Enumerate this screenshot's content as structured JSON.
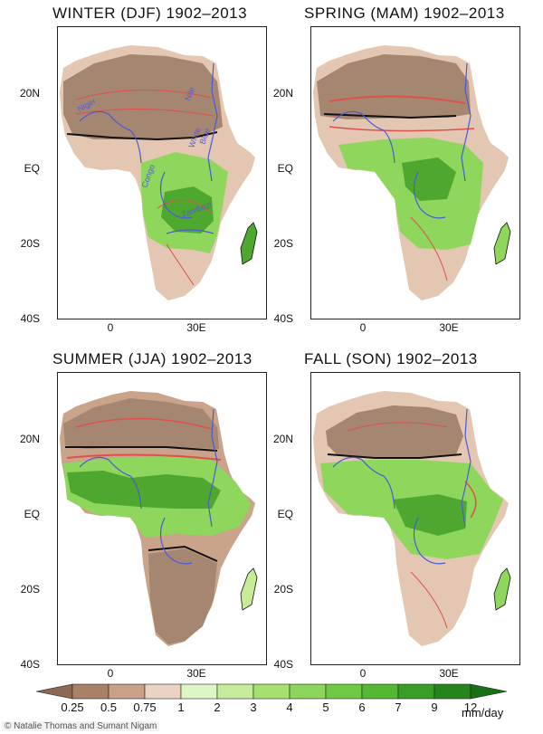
{
  "panels": [
    {
      "title": "WINTER (DJF) 1902–2013",
      "season": "winter"
    },
    {
      "title": "SPRING (MAM) 1902–2013",
      "season": "spring"
    },
    {
      "title": "SUMMER (JJA) 1902–2013",
      "season": "summer"
    },
    {
      "title": "FALL (SON) 1902–2013",
      "season": "fall"
    }
  ],
  "axes": {
    "lat_ticks": [
      "20N",
      "EQ",
      "20S",
      "40S"
    ],
    "lon_ticks": [
      "0",
      "30E"
    ]
  },
  "rivers": [
    "Niger",
    "Nile",
    "Blue",
    "White",
    "Congo",
    "Zambezi"
  ],
  "colorbar": {
    "ticks": [
      "0.25",
      "0.5",
      "0.75",
      "1",
      "2",
      "3",
      "4",
      "5",
      "6",
      "7",
      "9",
      "12"
    ],
    "units": "mm/day",
    "colors": [
      "#8a6a52",
      "#a98166",
      "#c9a088",
      "#ead3c3",
      "#dff5c6",
      "#c4ec9a",
      "#a6e070",
      "#8dd55a",
      "#6fca43",
      "#55b832",
      "#3a9e26",
      "#25851c",
      "#187016"
    ]
  },
  "credit": "© Natalie Thomas and Sumant Nigam",
  "palette": {
    "ocean": "#ffffff",
    "very_dry": "#a58670",
    "dry": "#c9a38a",
    "semi_dry": "#e3c7b2",
    "wet_light": "#c7ec98",
    "wet_mid": "#8ed65c",
    "wet_heavy": "#4ea82f",
    "contour": "#e0504a",
    "river": "#4a5ad6"
  }
}
